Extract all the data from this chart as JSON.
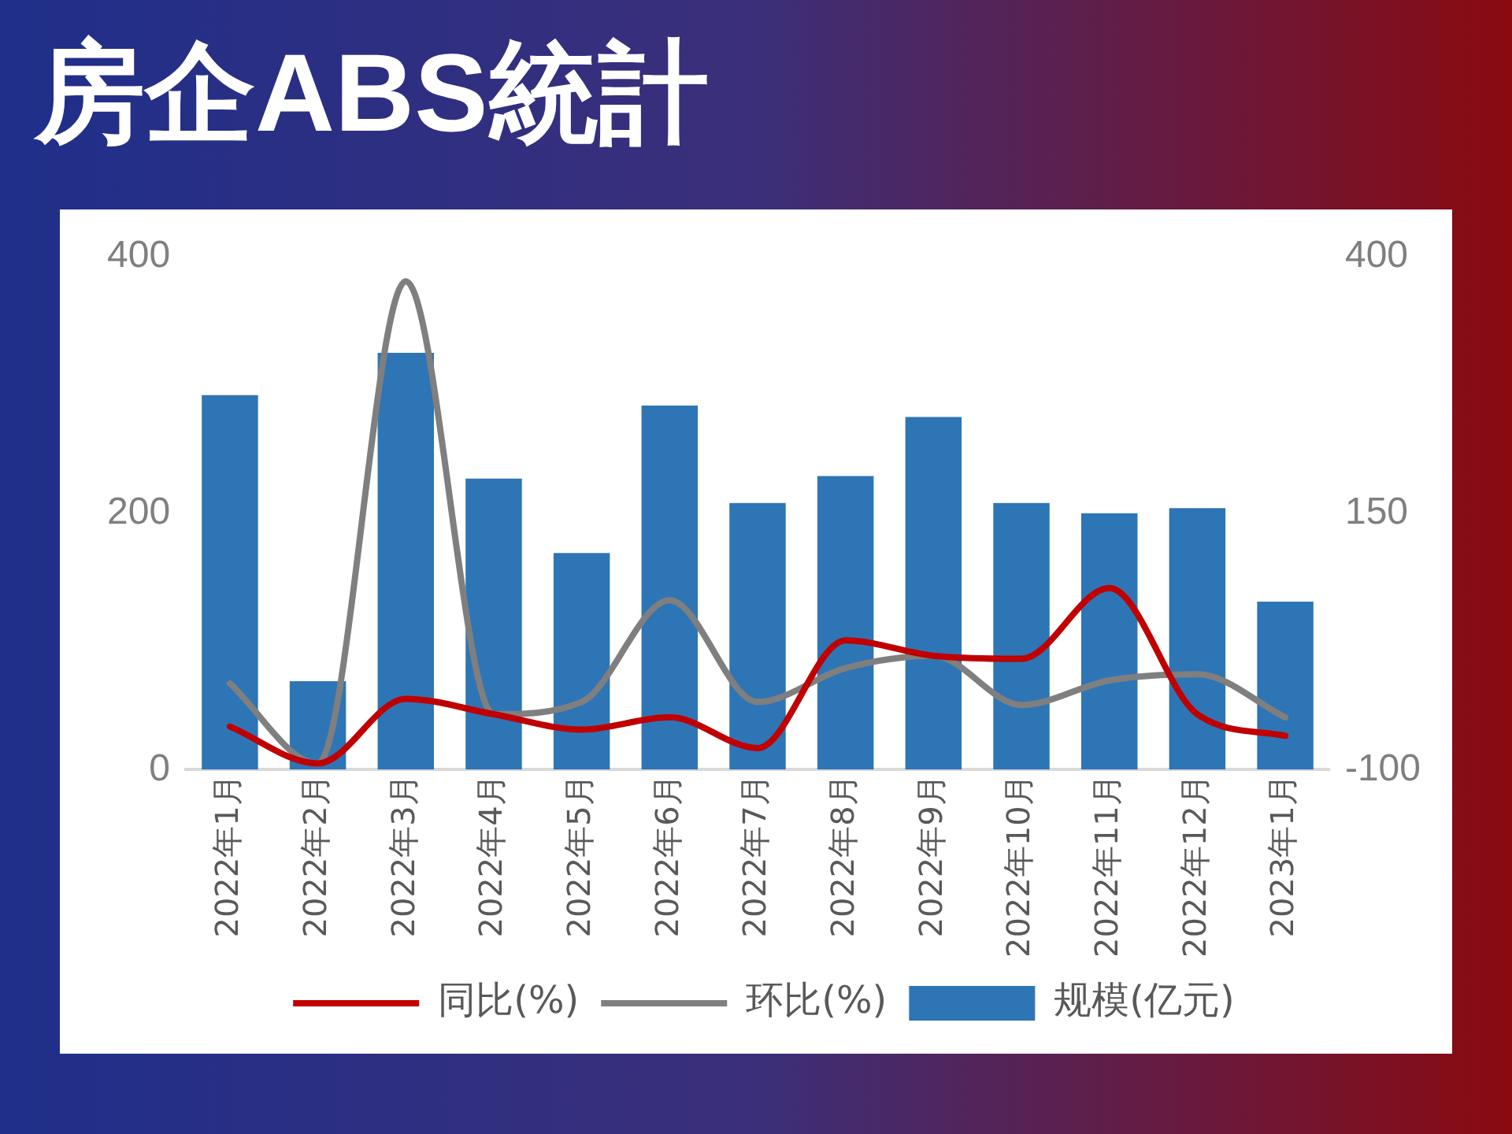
{
  "chart_data": {
    "type": "bar",
    "title": "房企ABS統計",
    "categories": [
      "2022年1月",
      "2022年2月",
      "2022年3月",
      "2022年4月",
      "2022年5月",
      "2022年6月",
      "2022年7月",
      "2022年8月",
      "2022年9月",
      "2022年10月",
      "2022年11月",
      "2022年12月",
      "2023年1月"
    ],
    "series": [
      {
        "name": "规模(亿元)",
        "color": "#2e75b6",
        "values": [
          292,
          69,
          325,
          227,
          169,
          284,
          208,
          229,
          275,
          208,
          200,
          204,
          131
        ]
      },
      {
        "name": "同比(%)",
        "type": "line",
        "axis": "y2",
        "color": "#c00000",
        "values": [
          -58,
          -94,
          -31,
          -46,
          -61,
          -49,
          -79,
          26,
          11,
          8,
          77,
          -46,
          -67
        ]
      },
      {
        "name": "环比(%)",
        "type": "line",
        "axis": "y2",
        "color": "#7f7f7f",
        "values": [
          -16,
          -94,
          376,
          -46,
          -34,
          65,
          -34,
          -1,
          11,
          -37,
          -13,
          -7,
          -49
        ]
      }
    ],
    "ylim": [
      0,
      400
    ],
    "yticks": [
      0,
      200,
      400
    ],
    "y2lim": [
      -100,
      400
    ],
    "y2ticks": [
      -100,
      150,
      400
    ],
    "legend": "bottom"
  }
}
